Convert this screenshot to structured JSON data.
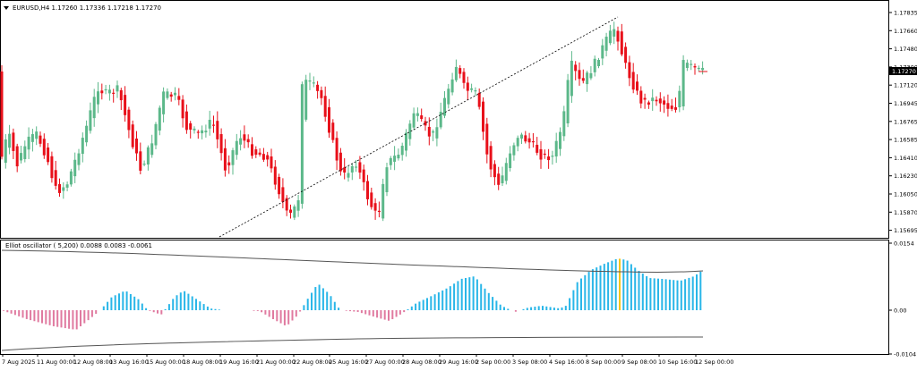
{
  "chart": {
    "symbol_line": "EURUSD,H4  1.17260 1.17336 1.17218 1.17270",
    "current_price_label": "1.17270",
    "price_axis_labels": [
      "1.17835",
      "1.17660",
      "1.17480",
      "1.17300",
      "1.17120",
      "1.16945",
      "1.16765",
      "1.16585",
      "1.16410",
      "1.16230",
      "1.16050",
      "1.15870",
      "1.15695"
    ],
    "time_axis_labels": [
      "7 Aug 2025",
      "11 Aug 00:00",
      "12 Aug 08:00",
      "13 Aug 16:00",
      "15 Aug 00:00",
      "18 Aug 08:00",
      "19 Aug 16:00",
      "21 Aug 00:00",
      "22 Aug 08:00",
      "25 Aug 16:00",
      "27 Aug 00:00",
      "28 Aug 08:00",
      "29 Aug 16:00",
      "2 Sep 00:00",
      "3 Sep 08:00",
      "4 Sep 16:00",
      "8 Sep 00:00",
      "9 Sep 08:00",
      "10 Sep 16:00",
      "12 Sep 00:00"
    ],
    "colors": {
      "bull": "#5cb88a",
      "bear": "#e8101a",
      "osc_pos": "#29b6e8",
      "osc_neg": "#e07aa0",
      "osc_peak": "#f5c518"
    }
  },
  "oscillator": {
    "title": "Elliot oscillator ( 5,200) 0.0088 0.0083 -0.0061",
    "axis_labels": [
      "0.0154",
      "0.00",
      "-0.0104"
    ]
  }
}
